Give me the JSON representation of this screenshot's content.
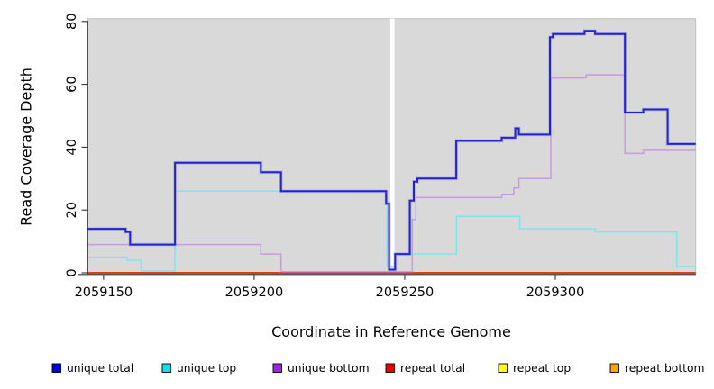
{
  "chart_data": {
    "type": "line",
    "style": "step",
    "title": "",
    "xlabel": "Coordinate in Reference Genome",
    "ylabel": "Read Coverage Depth",
    "xlim": [
      2059144.8,
      2059346.6
    ],
    "ylim": [
      0,
      81
    ],
    "x_ticks": [
      2059150,
      2059200,
      2059250,
      2059300
    ],
    "y_ticks": [
      0,
      20,
      40,
      60,
      80
    ],
    "grid": false,
    "plot_background": "#d9d9d9",
    "gap_band": {
      "x_start": 2059245.2,
      "x_end": 2059246.6,
      "value_bottom": 1,
      "color": "#ffffff"
    },
    "legend_position": "bottom",
    "series": [
      {
        "name": "unique total",
        "legend_color": "#0000ee",
        "line_color": "#2424cf",
        "points": [
          [
            2059144.8,
            14
          ],
          [
            2059157.3,
            13
          ],
          [
            2059158.8,
            9
          ],
          [
            2059173.7,
            35
          ],
          [
            2059202.2,
            32
          ],
          [
            2059208.9,
            26
          ],
          [
            2059243.8,
            22
          ],
          [
            2059244.8,
            1
          ],
          [
            2059246.8,
            6
          ],
          [
            2059251.7,
            23
          ],
          [
            2059253.0,
            29
          ],
          [
            2059254.2,
            30
          ],
          [
            2059267.1,
            42
          ],
          [
            2059282.2,
            43
          ],
          [
            2059286.7,
            46
          ],
          [
            2059287.9,
            44
          ],
          [
            2059298.2,
            75
          ],
          [
            2059299.2,
            76
          ],
          [
            2059309.7,
            77
          ],
          [
            2059313.2,
            76
          ],
          [
            2059323.1,
            51
          ],
          [
            2059329.2,
            52
          ],
          [
            2059337.3,
            41
          ]
        ]
      },
      {
        "name": "unique top",
        "legend_color": "#00e5f0",
        "line_color": "#7fe5ea",
        "points": [
          [
            2059144.8,
            5
          ],
          [
            2059157.7,
            4
          ],
          [
            2059162.5,
            0
          ],
          [
            2059173.7,
            26
          ],
          [
            2059244.1,
            2
          ],
          [
            2059246.8,
            6
          ],
          [
            2059267.2,
            18
          ],
          [
            2059288.2,
            14
          ],
          [
            2059313.2,
            13
          ],
          [
            2059340.3,
            2
          ]
        ]
      },
      {
        "name": "unique bottom",
        "legend_color": "#a020f0",
        "line_color": "#c79bdf",
        "points": [
          [
            2059144.8,
            9
          ],
          [
            2059202.2,
            6
          ],
          [
            2059208.9,
            0
          ],
          [
            2059252.5,
            17
          ],
          [
            2059253.7,
            24
          ],
          [
            2059282.2,
            25
          ],
          [
            2059286.2,
            27
          ],
          [
            2059287.9,
            30
          ],
          [
            2059298.5,
            62
          ],
          [
            2059310.2,
            63
          ],
          [
            2059323.1,
            38
          ],
          [
            2059329.2,
            39
          ]
        ]
      },
      {
        "name": "repeat total",
        "legend_color": "#ee0000",
        "line_color": "#dd1111",
        "points": [
          [
            2059144.8,
            0
          ]
        ]
      },
      {
        "name": "repeat top",
        "legend_color": "#ffff00",
        "line_color": "#f2e200",
        "points": [
          [
            2059144.8,
            0
          ]
        ]
      },
      {
        "name": "repeat bottom",
        "legend_color": "#ffa500",
        "line_color": "#ff9f1f",
        "points": [
          [
            2059144.8,
            0
          ]
        ]
      }
    ]
  }
}
